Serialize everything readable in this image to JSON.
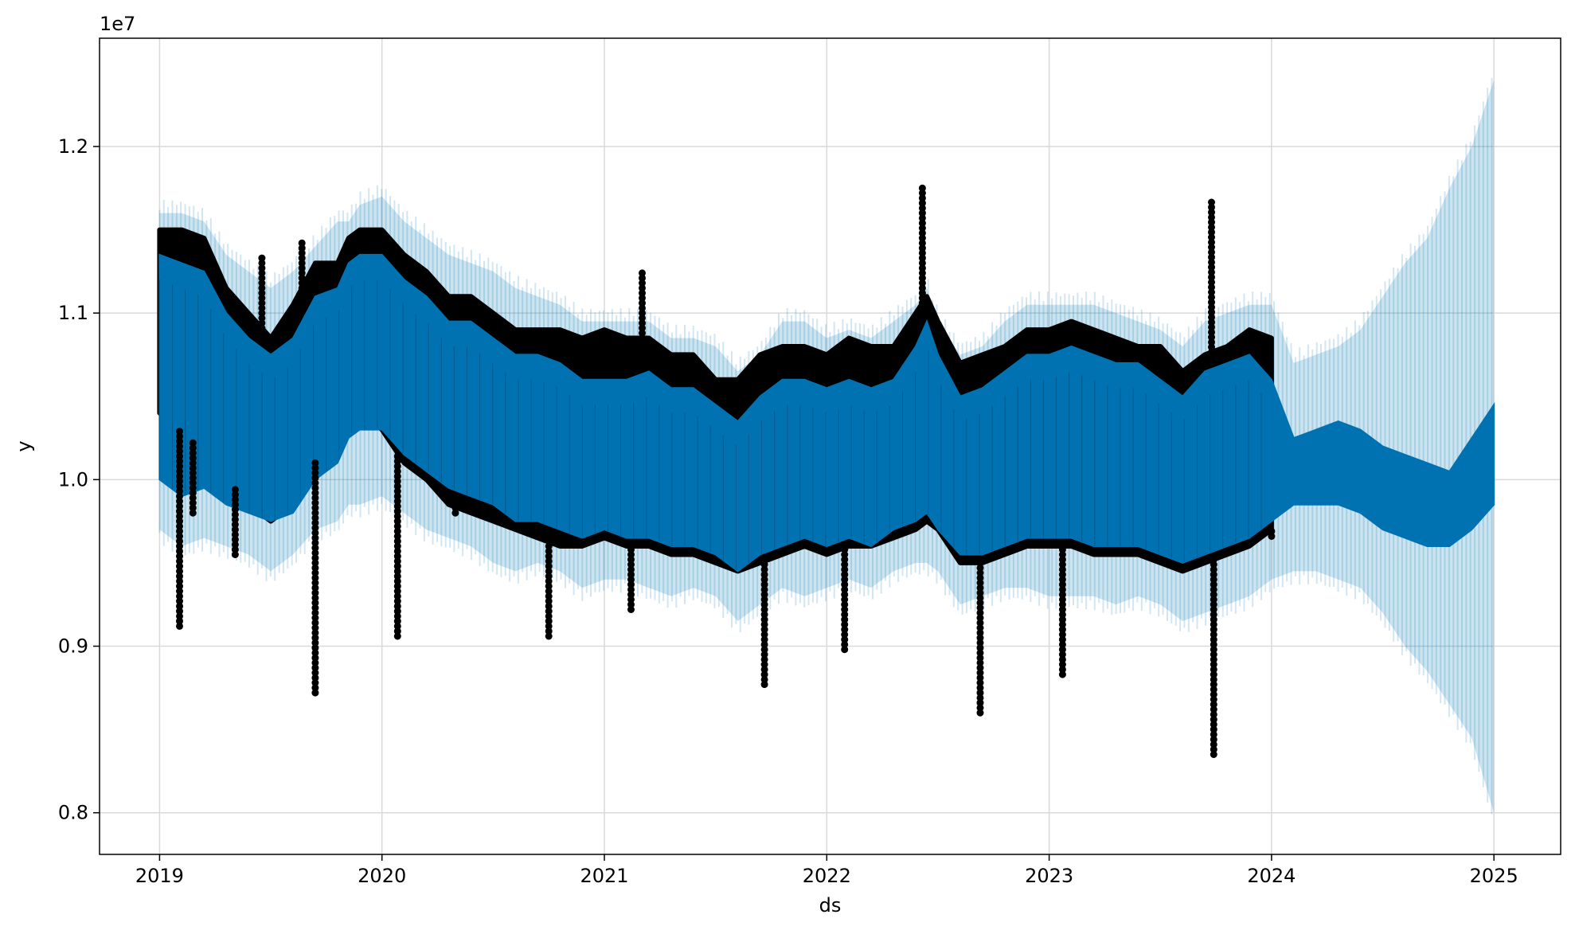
{
  "chart_data": {
    "type": "line",
    "title": "",
    "xlabel": "ds",
    "ylabel": "y",
    "y_offset_label": "1e7",
    "xlim": [
      2018.73,
      2025.3
    ],
    "ylim": [
      7.75,
      12.65
    ],
    "x_ticks": [
      {
        "value": 2019,
        "label": "2019"
      },
      {
        "value": 2020,
        "label": "2020"
      },
      {
        "value": 2021,
        "label": "2021"
      },
      {
        "value": 2022,
        "label": "2022"
      },
      {
        "value": 2023,
        "label": "2023"
      },
      {
        "value": 2024,
        "label": "2024"
      },
      {
        "value": 2025,
        "label": "2025"
      }
    ],
    "y_ticks": [
      {
        "value": 8.0,
        "label": "0.8"
      },
      {
        "value": 9.0,
        "label": "0.9"
      },
      {
        "value": 10.0,
        "label": "1.0"
      },
      {
        "value": 11.0,
        "label": "1.1"
      },
      {
        "value": 12.0,
        "label": "1.2"
      }
    ],
    "grid": true,
    "colors": {
      "observed": "#000000",
      "forecast": "#0072B2",
      "interval": "#0072B2",
      "grid": "#d9d9d9"
    },
    "series": [
      {
        "kind": "interval",
        "x": [
          2019.0,
          2019.1,
          2019.2,
          2019.3,
          2019.4,
          2019.5,
          2019.6,
          2019.7,
          2019.8,
          2019.85,
          2019.9,
          2020.0,
          2020.1,
          2020.2,
          2020.3,
          2020.4,
          2020.5,
          2020.6,
          2020.7,
          2020.8,
          2020.9,
          2021.0,
          2021.1,
          2021.2,
          2021.3,
          2021.4,
          2021.5,
          2021.6,
          2021.7,
          2021.8,
          2021.9,
          2022.0,
          2022.1,
          2022.2,
          2022.3,
          2022.4,
          2022.45,
          2022.5,
          2022.6,
          2022.7,
          2022.8,
          2022.9,
          2023.0,
          2023.1,
          2023.2,
          2023.3,
          2023.4,
          2023.5,
          2023.6,
          2023.7,
          2023.8,
          2023.9,
          2024.0,
          2024.1,
          2024.2,
          2024.3,
          2024.4,
          2024.5,
          2024.6,
          2024.7,
          2024.8,
          2024.9,
          2025.0
        ],
        "upper": [
          11.6,
          11.6,
          11.55,
          11.35,
          11.25,
          11.15,
          11.25,
          11.4,
          11.55,
          11.55,
          11.65,
          11.7,
          11.55,
          11.45,
          11.35,
          11.3,
          11.25,
          11.15,
          11.1,
          11.05,
          10.95,
          10.95,
          10.95,
          10.95,
          10.85,
          10.85,
          10.8,
          10.65,
          10.75,
          10.95,
          10.95,
          10.85,
          10.9,
          10.85,
          10.95,
          11.05,
          11.15,
          10.95,
          10.75,
          10.8,
          10.95,
          11.05,
          11.05,
          11.05,
          11.05,
          11.0,
          10.95,
          10.9,
          10.8,
          10.95,
          11.0,
          11.05,
          11.05,
          10.7,
          10.75,
          10.8,
          10.9,
          11.1,
          11.3,
          11.45,
          11.75,
          12.0,
          12.4
        ],
        "lower": [
          9.7,
          9.6,
          9.65,
          9.6,
          9.55,
          9.45,
          9.55,
          9.7,
          9.75,
          9.85,
          9.85,
          9.9,
          9.8,
          9.7,
          9.65,
          9.6,
          9.5,
          9.45,
          9.5,
          9.45,
          9.35,
          9.4,
          9.4,
          9.35,
          9.3,
          9.35,
          9.3,
          9.15,
          9.25,
          9.35,
          9.3,
          9.35,
          9.4,
          9.35,
          9.45,
          9.5,
          9.5,
          9.45,
          9.25,
          9.3,
          9.35,
          9.35,
          9.3,
          9.3,
          9.3,
          9.25,
          9.3,
          9.25,
          9.15,
          9.2,
          9.25,
          9.3,
          9.4,
          9.45,
          9.45,
          9.4,
          9.35,
          9.2,
          9.0,
          8.85,
          8.65,
          8.45,
          8.0
        ]
      },
      {
        "kind": "forecast",
        "x": [
          2019.0,
          2019.1,
          2019.2,
          2019.3,
          2019.4,
          2019.5,
          2019.6,
          2019.7,
          2019.8,
          2019.85,
          2019.9,
          2020.0,
          2020.1,
          2020.2,
          2020.3,
          2020.4,
          2020.5,
          2020.6,
          2020.7,
          2020.8,
          2020.9,
          2021.0,
          2021.1,
          2021.2,
          2021.3,
          2021.4,
          2021.5,
          2021.6,
          2021.7,
          2021.8,
          2021.9,
          2022.0,
          2022.1,
          2022.2,
          2022.3,
          2022.4,
          2022.45,
          2022.5,
          2022.6,
          2022.7,
          2022.8,
          2022.9,
          2023.0,
          2023.1,
          2023.2,
          2023.3,
          2023.4,
          2023.5,
          2023.6,
          2023.7,
          2023.8,
          2023.9,
          2024.0,
          2024.1,
          2024.2,
          2024.3,
          2024.4,
          2024.5,
          2024.6,
          2024.7,
          2024.8,
          2024.9,
          2025.0
        ],
        "upper": [
          11.35,
          11.3,
          11.25,
          11.0,
          10.85,
          10.75,
          10.85,
          11.1,
          11.15,
          11.3,
          11.35,
          11.35,
          11.2,
          11.1,
          10.95,
          10.95,
          10.85,
          10.75,
          10.75,
          10.7,
          10.6,
          10.6,
          10.6,
          10.65,
          10.55,
          10.55,
          10.45,
          10.35,
          10.5,
          10.6,
          10.6,
          10.55,
          10.6,
          10.55,
          10.6,
          10.8,
          10.95,
          10.75,
          10.5,
          10.55,
          10.65,
          10.75,
          10.75,
          10.8,
          10.75,
          10.7,
          10.7,
          10.6,
          10.5,
          10.65,
          10.7,
          10.75,
          10.6,
          10.25,
          10.3,
          10.35,
          10.3,
          10.2,
          10.15,
          10.1,
          10.05,
          10.25,
          10.45
        ],
        "lower": [
          10.0,
          9.9,
          9.95,
          9.85,
          9.8,
          9.75,
          9.8,
          10.0,
          10.1,
          10.25,
          10.3,
          10.3,
          10.15,
          10.05,
          9.95,
          9.9,
          9.85,
          9.75,
          9.75,
          9.7,
          9.65,
          9.7,
          9.65,
          9.65,
          9.6,
          9.6,
          9.55,
          9.45,
          9.55,
          9.6,
          9.65,
          9.6,
          9.65,
          9.6,
          9.7,
          9.75,
          9.8,
          9.7,
          9.55,
          9.55,
          9.6,
          9.65,
          9.65,
          9.65,
          9.6,
          9.6,
          9.6,
          9.55,
          9.5,
          9.55,
          9.6,
          9.65,
          9.75,
          9.85,
          9.85,
          9.85,
          9.8,
          9.7,
          9.65,
          9.6,
          9.6,
          9.7,
          9.85
        ]
      },
      {
        "kind": "observed",
        "x": [
          2019.0,
          2019.1,
          2019.2,
          2019.3,
          2019.4,
          2019.5,
          2019.6,
          2019.7,
          2019.8,
          2019.85,
          2019.9,
          2020.0,
          2020.1,
          2020.2,
          2020.3,
          2020.4,
          2020.5,
          2020.6,
          2020.7,
          2020.8,
          2020.9,
          2021.0,
          2021.1,
          2021.2,
          2021.3,
          2021.4,
          2021.5,
          2021.6,
          2021.7,
          2021.8,
          2021.9,
          2022.0,
          2022.1,
          2022.2,
          2022.3,
          2022.4,
          2022.45,
          2022.5,
          2022.6,
          2022.7,
          2022.8,
          2022.9,
          2023.0,
          2023.1,
          2023.2,
          2023.3,
          2023.4,
          2023.5,
          2023.6,
          2023.7,
          2023.8,
          2023.9,
          2024.0
        ],
        "upper": [
          11.5,
          11.5,
          11.45,
          11.15,
          11.0,
          10.85,
          11.05,
          11.3,
          11.3,
          11.45,
          11.5,
          11.5,
          11.35,
          11.25,
          11.1,
          11.1,
          11.0,
          10.9,
          10.9,
          10.9,
          10.85,
          10.9,
          10.85,
          10.85,
          10.75,
          10.75,
          10.6,
          10.6,
          10.75,
          10.8,
          10.8,
          10.75,
          10.85,
          10.8,
          10.8,
          11.0,
          11.1,
          10.95,
          10.7,
          10.75,
          10.8,
          10.9,
          10.9,
          10.95,
          10.9,
          10.85,
          10.8,
          10.8,
          10.65,
          10.75,
          10.8,
          10.9,
          10.85
        ],
        "lower": [
          10.4,
          10.3,
          10.2,
          10.0,
          9.85,
          9.75,
          9.85,
          10.1,
          10.3,
          10.35,
          10.4,
          10.3,
          10.1,
          10.0,
          9.85,
          9.8,
          9.75,
          9.7,
          9.65,
          9.6,
          9.6,
          9.65,
          9.6,
          9.6,
          9.55,
          9.55,
          9.5,
          9.45,
          9.5,
          9.55,
          9.6,
          9.55,
          9.6,
          9.6,
          9.65,
          9.7,
          9.75,
          9.7,
          9.5,
          9.5,
          9.55,
          9.6,
          9.6,
          9.6,
          9.55,
          9.55,
          9.55,
          9.5,
          9.45,
          9.5,
          9.55,
          9.6,
          9.7
        ],
        "outliers": [
          {
            "x": 2019.09,
            "y": 9.12
          },
          {
            "x": 2019.15,
            "y": 9.8
          },
          {
            "x": 2019.34,
            "y": 9.55
          },
          {
            "x": 2019.46,
            "y": 11.35
          },
          {
            "x": 2019.64,
            "y": 11.45
          },
          {
            "x": 2019.7,
            "y": 8.72
          },
          {
            "x": 2020.07,
            "y": 9.06
          },
          {
            "x": 2020.33,
            "y": 9.8
          },
          {
            "x": 2020.75,
            "y": 9.06
          },
          {
            "x": 2021.12,
            "y": 9.22
          },
          {
            "x": 2021.17,
            "y": 11.24
          },
          {
            "x": 2021.72,
            "y": 8.77
          },
          {
            "x": 2022.08,
            "y": 8.98
          },
          {
            "x": 2022.43,
            "y": 11.75
          },
          {
            "x": 2022.69,
            "y": 8.6
          },
          {
            "x": 2023.06,
            "y": 8.83
          },
          {
            "x": 2023.73,
            "y": 11.69
          },
          {
            "x": 2023.74,
            "y": 8.35
          },
          {
            "x": 2024.0,
            "y": 9.66
          }
        ]
      }
    ]
  }
}
